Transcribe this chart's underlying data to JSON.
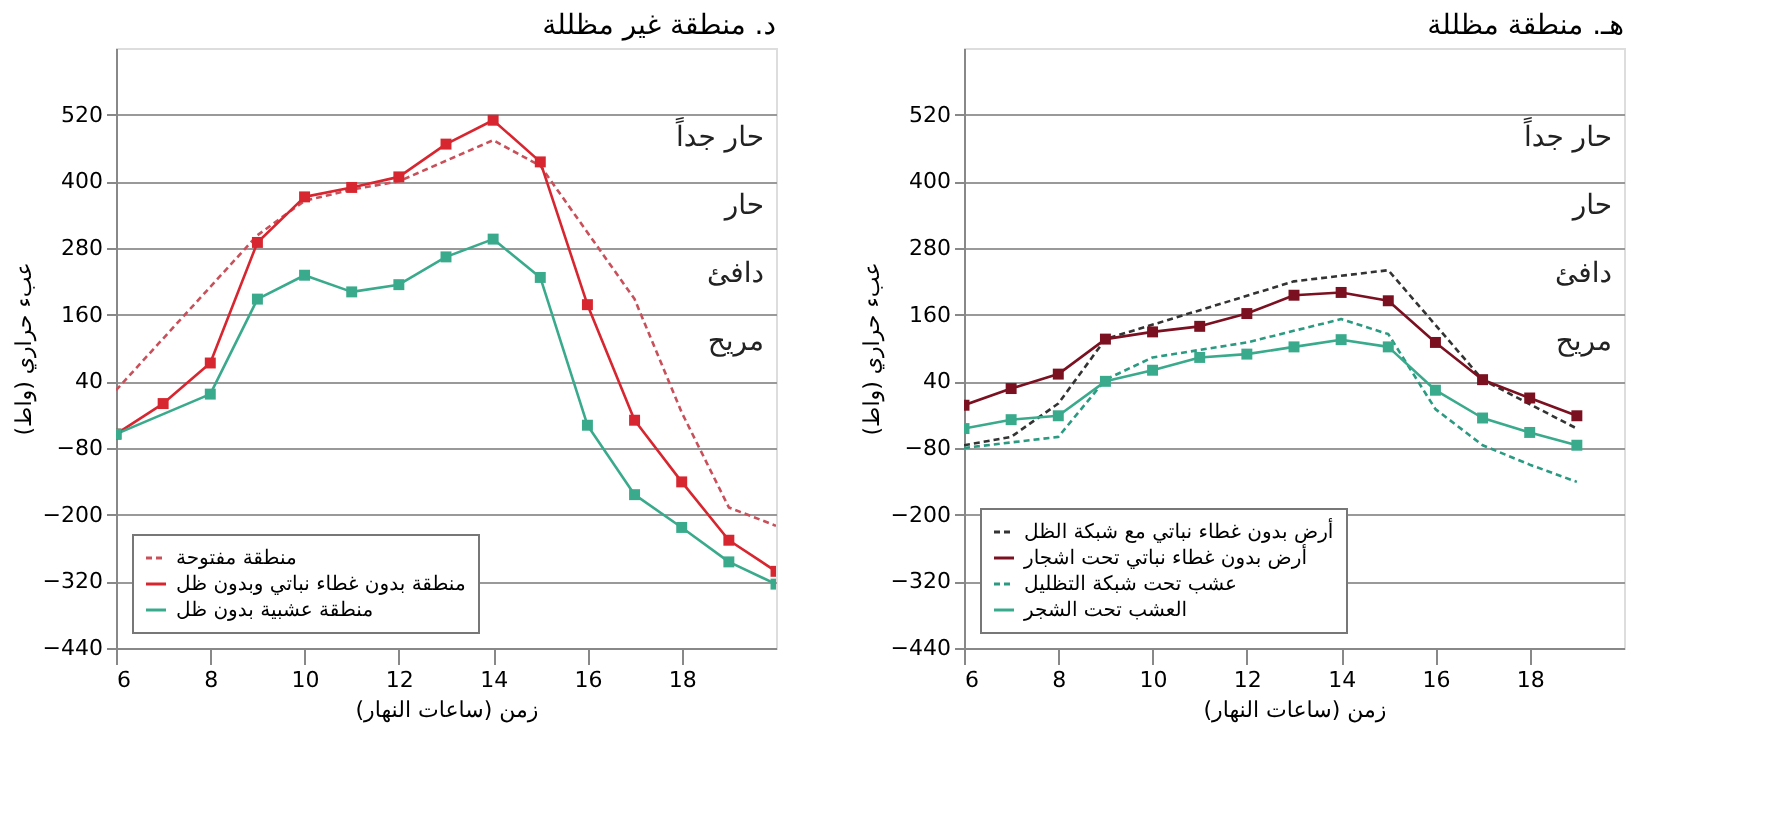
{
  "chart_data": [
    {
      "type": "line",
      "title": "د. منطقة غير مظللة",
      "xlabel": "زمن (ساعات النهار)",
      "ylabel": "عبء حراري (واط)",
      "xlim": [
        6,
        20
      ],
      "xticks": [
        6,
        8,
        10,
        12,
        14,
        16,
        18
      ],
      "ylim": [
        -440,
        640
      ],
      "yticks": [
        -440,
        -320,
        -200,
        -80,
        40,
        160,
        280,
        400,
        520
      ],
      "grid": "y",
      "legend": "bottom left",
      "annotations": [
        "حار جداً",
        "حار",
        "دافئ",
        "مريح"
      ],
      "series": [
        {
          "name": "منطقة مفتوحة",
          "color": "#c8505a",
          "line_style": "dashed",
          "marker": "none",
          "x": [
            6,
            9,
            10,
            11,
            12,
            14,
            15,
            17,
            18,
            19,
            20
          ],
          "values": [
            24,
            303,
            365,
            385,
            400,
            474,
            428,
            188,
            -16,
            -187,
            -220
          ]
        },
        {
          "name": "منطقة بدون غطاء نباتي وبدون ظل",
          "color": "#d7262f",
          "line_style": "solid",
          "marker": "square",
          "x": [
            6,
            7,
            8,
            9,
            10,
            11,
            12,
            13,
            14,
            15,
            16,
            17,
            18,
            19,
            20
          ],
          "values": [
            -55,
            0,
            73,
            290,
            372,
            389,
            408,
            467,
            510,
            435,
            178,
            -30,
            -141,
            -246,
            -302
          ]
        },
        {
          "name": "منطقة عشبية بدون ظل",
          "color": "#3aaa8c",
          "line_style": "solid",
          "marker": "square",
          "x": [
            6,
            8,
            9,
            10,
            11,
            12,
            13,
            14,
            15,
            16,
            17,
            18,
            19,
            20
          ],
          "values": [
            -55,
            17,
            188,
            231,
            201,
            214,
            264,
            296,
            227,
            -39,
            -164,
            -223,
            -285,
            -325
          ]
        }
      ]
    },
    {
      "type": "line",
      "title": "هـ. منطقة مظللة",
      "xlabel": "زمن (ساعات النهار)",
      "ylabel": "عبء حراري (واط)",
      "xlim": [
        6,
        20
      ],
      "xticks": [
        6,
        8,
        10,
        12,
        14,
        16,
        18
      ],
      "ylim": [
        -440,
        640
      ],
      "yticks": [
        -440,
        -320,
        -200,
        -80,
        40,
        160,
        280,
        400,
        520
      ],
      "grid": "y",
      "legend": "bottom left",
      "annotations": [
        "حار جداً",
        "حار",
        "دافئ",
        "مريح"
      ],
      "series": [
        {
          "name": "أرض بدون غطاء نباتي مع شبكة الظل",
          "color": "#333333",
          "line_style": "dashed",
          "marker": "none",
          "x": [
            6,
            7,
            8,
            9,
            13,
            15,
            17,
            19
          ],
          "values": [
            -75,
            -60,
            0,
            116,
            220,
            240,
            43,
            -45
          ]
        },
        {
          "name": "أرض بدون غطاء نباتي تحت اشجار",
          "color": "#7a1020",
          "line_style": "solid",
          "marker": "square",
          "x": [
            6,
            7,
            8,
            9,
            10,
            11,
            12,
            13,
            14,
            15,
            16,
            17,
            18,
            19
          ],
          "values": [
            -3,
            27,
            53,
            116,
            129,
            139,
            162,
            195,
            200,
            185,
            110,
            43,
            10,
            -22
          ]
        },
        {
          "name": "عشب تحت شبكة التظليل",
          "color": "#2a9a80",
          "line_style": "dashed",
          "marker": "none",
          "x": [
            6,
            8,
            9,
            10,
            12,
            14,
            15,
            16,
            17,
            18,
            19
          ],
          "values": [
            -80,
            -60,
            43,
            83,
            110,
            152,
            125,
            -10,
            -75,
            -110,
            -141
          ]
        },
        {
          "name": "العشب تحت الشجر",
          "color": "#3aaa8c",
          "line_style": "solid",
          "marker": "square",
          "x": [
            6,
            7,
            8,
            9,
            10,
            11,
            12,
            13,
            14,
            15,
            16,
            17,
            18,
            19
          ],
          "values": [
            -45,
            -29,
            -22,
            40,
            60,
            83,
            89,
            102,
            115,
            102,
            24,
            -26,
            -52,
            -75
          ]
        }
      ]
    }
  ]
}
